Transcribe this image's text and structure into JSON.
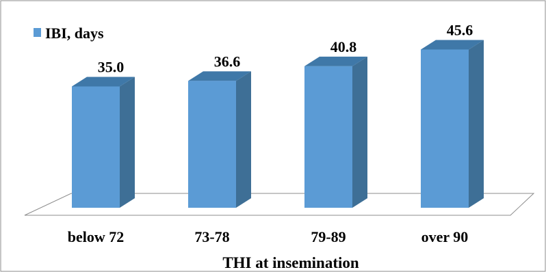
{
  "chart_data": {
    "type": "bar",
    "style": "3d-column",
    "categories": [
      "below 72",
      "73-78",
      "79-89",
      "over 90"
    ],
    "series": [
      {
        "name": "IBI, days",
        "values": [
          35.0,
          36.6,
          40.8,
          45.6
        ],
        "color": "#5b9bd5"
      }
    ],
    "value_labels": [
      "35.0",
      "36.6",
      "40.8",
      "45.6"
    ],
    "xlabel": "THI at insemination",
    "ylabel": "",
    "legend": "top-left",
    "grid": false
  },
  "colors": {
    "bar_front": "#5b9bd5",
    "bar_side": "#3e6f96",
    "bar_top": "#3f78a8",
    "floor": "#ffffff",
    "border": "#7f7f7f"
  }
}
